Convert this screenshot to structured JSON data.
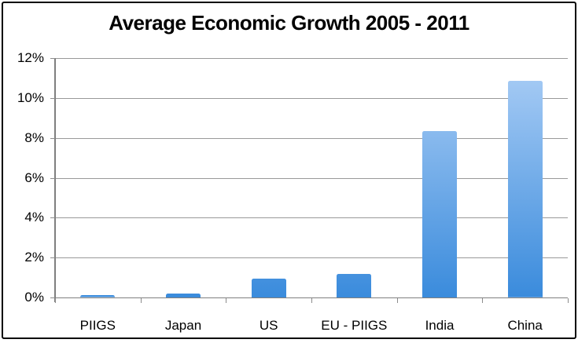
{
  "chart_data": {
    "type": "bar",
    "title": "Average Economic Growth 2005 - 2011",
    "categories": [
      "PIIGS",
      "Japan",
      "US",
      "EU - PIIGS",
      "India",
      "China"
    ],
    "values": [
      0.1,
      0.2,
      0.95,
      1.2,
      8.35,
      10.85
    ],
    "unit": "%",
    "xlabel": "",
    "ylabel": "",
    "ylim": [
      0,
      12
    ],
    "ytick_step": 2,
    "ytick_labels": [
      "0%",
      "2%",
      "4%",
      "6%",
      "8%",
      "10%",
      "12%"
    ],
    "grid": "horizontal",
    "legend": "none"
  },
  "style": {
    "background_color": "#ffffff",
    "frame_border_color": "#000000",
    "gridline_color": "#999999",
    "axis_color": "#7f7f7f",
    "tick_color": "#8c8c8c",
    "text_color": "#000000",
    "bar_gradient_top": "#adcff6",
    "bar_gradient_bottom": "#3a8bdc"
  }
}
